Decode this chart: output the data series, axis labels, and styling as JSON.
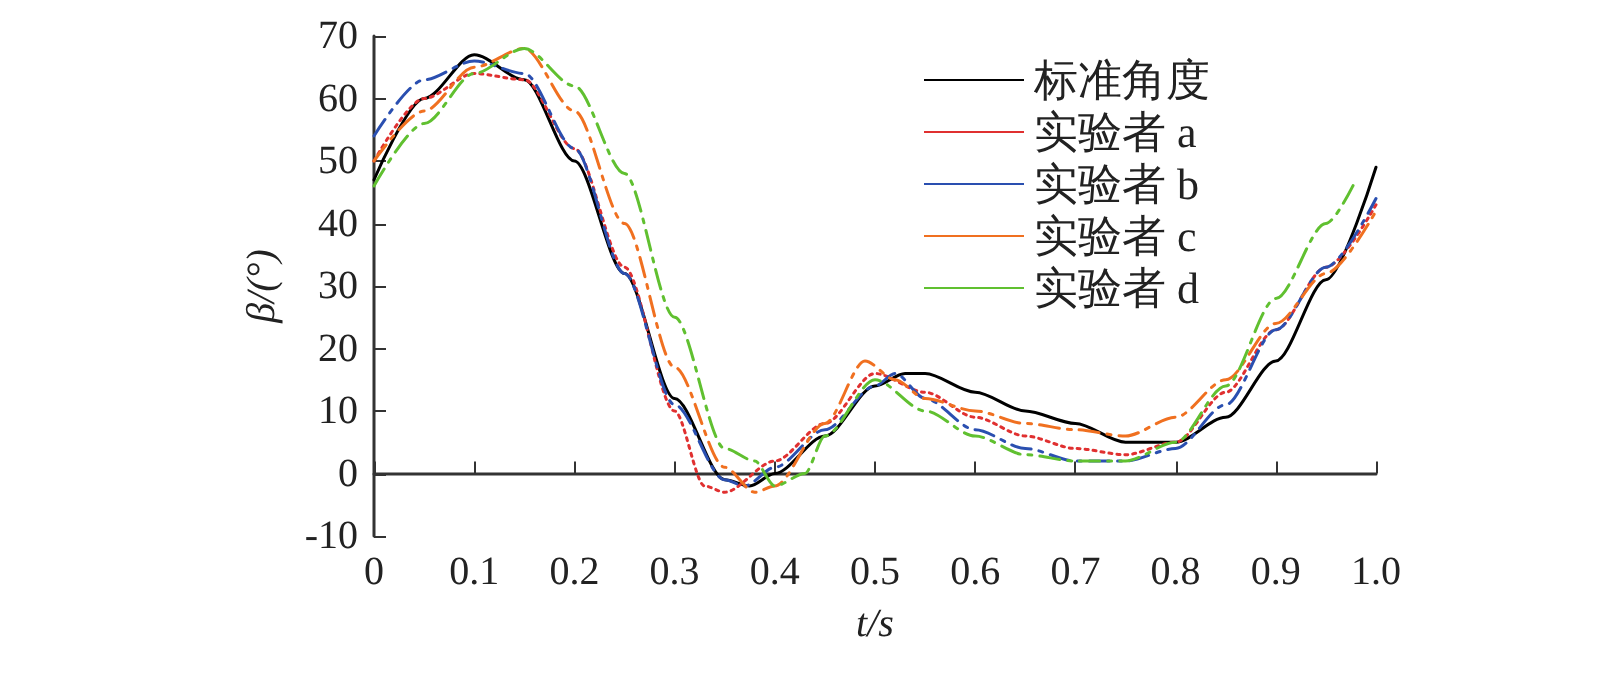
{
  "chart_data": {
    "type": "line",
    "xlabel": "t/s",
    "ylabel": "β/(°)",
    "xlim": [
      0,
      1
    ],
    "ylim": [
      -10,
      70
    ],
    "xticks": [
      0,
      0.1,
      0.2,
      0.3,
      0.4,
      0.5,
      0.6,
      0.7,
      0.8,
      0.9,
      {
        "value": 1,
        "label": "1.0"
      }
    ],
    "yticks": [
      -10,
      0,
      10,
      20,
      30,
      40,
      50,
      60,
      70
    ],
    "grid": false,
    "legend": "top right",
    "marker": "none",
    "series": [
      {
        "name": "标准角度",
        "color": "#000000",
        "line_style": "solid",
        "x": [
          0,
          0.05,
          0.1,
          0.15,
          0.2,
          0.25,
          0.3,
          0.35,
          0.375,
          0.4,
          0.45,
          0.5,
          0.53,
          0.55,
          0.6,
          0.65,
          0.7,
          0.75,
          0.8,
          0.85,
          0.9,
          0.95,
          1.0
        ],
        "values": [
          47,
          60,
          67,
          63,
          50,
          32,
          12,
          -1,
          -2,
          0,
          6,
          14,
          16,
          16,
          13,
          10,
          8,
          5,
          5,
          9,
          18,
          31,
          49
        ]
      },
      {
        "name": "实验者 a",
        "color": "#e03030",
        "line_style": "dotted",
        "x": [
          0,
          0.05,
          0.1,
          0.15,
          0.2,
          0.25,
          0.3,
          0.33,
          0.35,
          0.4,
          0.45,
          0.5,
          0.55,
          0.6,
          0.65,
          0.7,
          0.75,
          0.8,
          0.85,
          0.9,
          0.95,
          1.0
        ],
        "values": [
          50,
          60,
          64,
          63,
          52,
          33,
          10,
          -2,
          -3,
          2,
          8,
          16,
          13,
          9,
          6,
          4,
          3,
          5,
          13,
          23,
          33,
          43
        ]
      },
      {
        "name": "实验者 b",
        "color": "#2a4fb0",
        "line_style": "dashed",
        "x": [
          0,
          0.05,
          0.1,
          0.15,
          0.2,
          0.25,
          0.3,
          0.35,
          0.37,
          0.4,
          0.45,
          0.5,
          0.52,
          0.55,
          0.6,
          0.65,
          0.7,
          0.75,
          0.8,
          0.85,
          0.9,
          0.95,
          1.0
        ],
        "values": [
          54,
          63,
          66,
          64,
          52,
          32,
          11,
          -1,
          -2,
          1,
          7,
          14,
          16,
          12,
          7,
          4,
          2,
          2,
          4,
          11,
          23,
          33,
          44
        ]
      },
      {
        "name": "实验者 c",
        "color": "#f07020",
        "line_style": "dashed",
        "x": [
          0,
          0.05,
          0.1,
          0.15,
          0.2,
          0.25,
          0.3,
          0.35,
          0.38,
          0.4,
          0.45,
          0.49,
          0.52,
          0.55,
          0.6,
          0.65,
          0.7,
          0.75,
          0.8,
          0.85,
          0.9,
          0.95,
          1.0
        ],
        "values": [
          50,
          58,
          65,
          68,
          58,
          40,
          17,
          1,
          -3,
          -2,
          8,
          18,
          15,
          12,
          10,
          8,
          7,
          6,
          9,
          15,
          24,
          32,
          42
        ]
      },
      {
        "name": "实验者 d",
        "color": "#60c030",
        "line_style": "dashed",
        "x": [
          0,
          0.05,
          0.1,
          0.15,
          0.2,
          0.25,
          0.3,
          0.35,
          0.38,
          0.4,
          0.43,
          0.45,
          0.5,
          0.55,
          0.6,
          0.65,
          0.7,
          0.75,
          0.8,
          0.85,
          0.9,
          0.95,
          0.98
        ],
        "values": [
          46,
          56,
          64,
          68,
          62,
          48,
          25,
          4,
          2,
          -2,
          0,
          6,
          15,
          10,
          6,
          3,
          2,
          2,
          5,
          14,
          28,
          40,
          47
        ]
      }
    ]
  }
}
